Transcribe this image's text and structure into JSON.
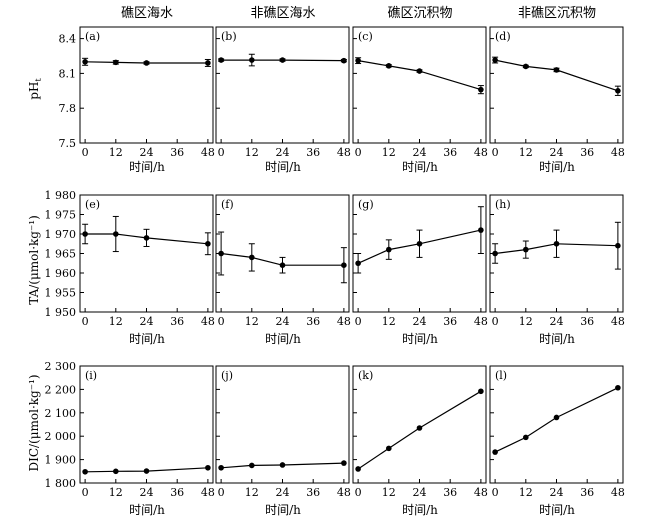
{
  "columns": [
    "礁区海水",
    "非礁区海水",
    "礁区沉积物",
    "非礁区沉积物"
  ],
  "xlabel": "时间/h",
  "colors": {
    "axis": "#000000",
    "series": "#000000"
  },
  "chart_data": [
    {
      "type": "line",
      "row": "pH",
      "ylabel_main": "pH",
      "ylabel_sub": "t",
      "x": [
        0,
        12,
        24,
        36,
        48
      ],
      "xlim": [
        -2,
        50
      ],
      "ylim": [
        7.5,
        8.5
      ],
      "yticks": [
        7.5,
        7.8,
        8.1,
        8.4
      ],
      "yticklabels": [
        "7.5",
        "7.8",
        "8.1",
        "8.4"
      ],
      "panels": [
        {
          "label": "(a)",
          "title": "礁区海水",
          "points": [
            {
              "x": 0,
              "y": 8.2,
              "err": 0.03
            },
            {
              "x": 12,
              "y": 8.195,
              "err": 0.015
            },
            {
              "x": 24,
              "y": 8.19,
              "err": 0.01
            },
            {
              "x": 48,
              "y": 8.19,
              "err": 0.03
            }
          ]
        },
        {
          "label": "(b)",
          "title": "非礁区海水",
          "points": [
            {
              "x": 0,
              "y": 8.215,
              "err": 0.01
            },
            {
              "x": 12,
              "y": 8.215,
              "err": 0.05
            },
            {
              "x": 24,
              "y": 8.215,
              "err": 0.01
            },
            {
              "x": 48,
              "y": 8.21,
              "err": 0.01
            }
          ]
        },
        {
          "label": "(c)",
          "title": "礁区沉积物",
          "points": [
            {
              "x": 0,
              "y": 8.21,
              "err": 0.025
            },
            {
              "x": 12,
              "y": 8.165,
              "err": 0.01
            },
            {
              "x": 24,
              "y": 8.12,
              "err": 0.01
            },
            {
              "x": 48,
              "y": 7.96,
              "err": 0.035
            }
          ]
        },
        {
          "label": "(d)",
          "title": "非礁区沉积物",
          "points": [
            {
              "x": 0,
              "y": 8.215,
              "err": 0.025
            },
            {
              "x": 12,
              "y": 8.16,
              "err": 0.01
            },
            {
              "x": 24,
              "y": 8.13,
              "err": 0.015
            },
            {
              "x": 48,
              "y": 7.95,
              "err": 0.04
            }
          ]
        }
      ]
    },
    {
      "type": "line",
      "row": "TA",
      "ylabel_main": "TA/(μmol·kg⁻¹)",
      "ylabel_sub": "",
      "x": [
        0,
        12,
        24,
        36,
        48
      ],
      "xlim": [
        -2,
        50
      ],
      "ylim": [
        1950,
        1980
      ],
      "yticks": [
        1950,
        1955,
        1960,
        1965,
        1970,
        1975,
        1980
      ],
      "yticklabels": [
        "1 950",
        "1 955",
        "1 960",
        "1 965",
        "1 970",
        "1 975",
        "1 980"
      ],
      "panels": [
        {
          "label": "(e)",
          "title": "礁区海水",
          "points": [
            {
              "x": 0,
              "y": 1970,
              "err": 2.5
            },
            {
              "x": 12,
              "y": 1970,
              "err": 4.5
            },
            {
              "x": 24,
              "y": 1969,
              "err": 2.2
            },
            {
              "x": 48,
              "y": 1967.5,
              "err": 2.8
            }
          ]
        },
        {
          "label": "(f)",
          "title": "非礁区海水",
          "points": [
            {
              "x": 0,
              "y": 1965,
              "err": 5.5
            },
            {
              "x": 12,
              "y": 1964,
              "err": 3.5
            },
            {
              "x": 24,
              "y": 1962,
              "err": 2
            },
            {
              "x": 48,
              "y": 1962,
              "err": 4.5
            }
          ]
        },
        {
          "label": "(g)",
          "title": "礁区沉积物",
          "points": [
            {
              "x": 0,
              "y": 1962.5,
              "err": 2.5
            },
            {
              "x": 12,
              "y": 1966,
              "err": 2.5
            },
            {
              "x": 24,
              "y": 1967.5,
              "err": 3.5
            },
            {
              "x": 48,
              "y": 1971,
              "err": 6
            }
          ]
        },
        {
          "label": "(h)",
          "title": "非礁区沉积物",
          "points": [
            {
              "x": 0,
              "y": 1965,
              "err": 2.5
            },
            {
              "x": 12,
              "y": 1966,
              "err": 2.2
            },
            {
              "x": 24,
              "y": 1967.5,
              "err": 3.5
            },
            {
              "x": 48,
              "y": 1967,
              "err": 6
            }
          ]
        }
      ]
    },
    {
      "type": "line",
      "row": "DIC",
      "ylabel_main": "DIC/(μmol·kg⁻¹)",
      "ylabel_sub": "",
      "x": [
        0,
        12,
        24,
        36,
        48
      ],
      "xlim": [
        -2,
        50
      ],
      "ylim": [
        1800,
        2300
      ],
      "yticks": [
        1800,
        1900,
        2000,
        2100,
        2200,
        2300
      ],
      "yticklabels": [
        "1 800",
        "1 900",
        "2 000",
        "2 100",
        "2 200",
        "2 300"
      ],
      "panels": [
        {
          "label": "(i)",
          "title": "礁区海水",
          "points": [
            {
              "x": 0,
              "y": 1848
            },
            {
              "x": 12,
              "y": 1850
            },
            {
              "x": 24,
              "y": 1851
            },
            {
              "x": 48,
              "y": 1865
            }
          ]
        },
        {
          "label": "(j)",
          "title": "非礁区海水",
          "points": [
            {
              "x": 0,
              "y": 1865
            },
            {
              "x": 12,
              "y": 1875
            },
            {
              "x": 24,
              "y": 1877
            },
            {
              "x": 48,
              "y": 1885
            }
          ]
        },
        {
          "label": "(k)",
          "title": "礁区沉积物",
          "points": [
            {
              "x": 0,
              "y": 1860
            },
            {
              "x": 12,
              "y": 1948
            },
            {
              "x": 24,
              "y": 2035
            },
            {
              "x": 48,
              "y": 2192
            }
          ]
        },
        {
          "label": "(l)",
          "title": "非礁区沉积物",
          "points": [
            {
              "x": 0,
              "y": 1932
            },
            {
              "x": 12,
              "y": 1995
            },
            {
              "x": 24,
              "y": 2080
            },
            {
              "x": 48,
              "y": 2207
            }
          ]
        }
      ]
    }
  ]
}
